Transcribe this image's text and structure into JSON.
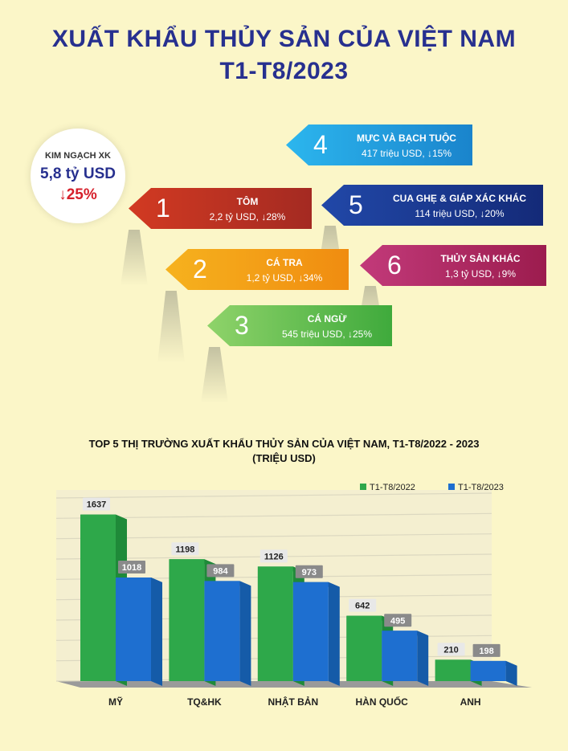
{
  "header": {
    "line1": "XUẤT KHẨU THỦY SẢN CỦA VIỆT NAM",
    "line2": "T1-T8/2023"
  },
  "summary": {
    "label": "KIM NGẠCH XK",
    "value": "5,8 tỷ USD",
    "change": "↓25%"
  },
  "products": [
    {
      "rank": "1",
      "name": "TÔM",
      "stat": "2,2 tỷ USD, ↓28%",
      "color": "#c0392b"
    },
    {
      "rank": "2",
      "name": "CÁ TRA",
      "stat": "1,2 tỷ USD, ↓34%",
      "color": "#f39c12"
    },
    {
      "rank": "3",
      "name": "CÁ NGỪ",
      "stat": "545 triệu USD, ↓25%",
      "color": "#5cb85c"
    },
    {
      "rank": "4",
      "name": "MỰC VÀ BẠCH TUỘC",
      "stat": "417 triệu USD, ↓15%",
      "color": "#29a8e0"
    },
    {
      "rank": "5",
      "name": "CUA GHẸ & GIÁP XÁC KHÁC",
      "stat": "114 triệu USD, ↓20%",
      "color": "#1f3c8f"
    },
    {
      "rank": "6",
      "name": "THỦY SẢN KHÁC",
      "stat": "1,3 tỷ USD, ↓9%",
      "color": "#b5245e"
    }
  ],
  "chart_title": {
    "line1": "TOP 5 THỊ TRƯỜNG XUẤT KHẨU THỦY SẢN CỦA VIỆT NAM, T1-T8/2022 - 2023",
    "line2": "(TRIỆU USD)"
  },
  "chart_data": {
    "type": "bar",
    "categories": [
      "MỸ",
      "TQ&HK",
      "NHẬT BẢN",
      "HÀN QUỐC",
      "ANH"
    ],
    "series": [
      {
        "name": "T1-T8/2022",
        "values": [
          1637,
          1198,
          1126,
          642,
          210
        ],
        "color": "#2ea84a"
      },
      {
        "name": "T1-T8/2023",
        "values": [
          1018,
          984,
          973,
          495,
          198
        ],
        "color": "#1e6fd0"
      }
    ],
    "ylim": [
      0,
      1800
    ],
    "grid": true,
    "legend": "top-right"
  }
}
